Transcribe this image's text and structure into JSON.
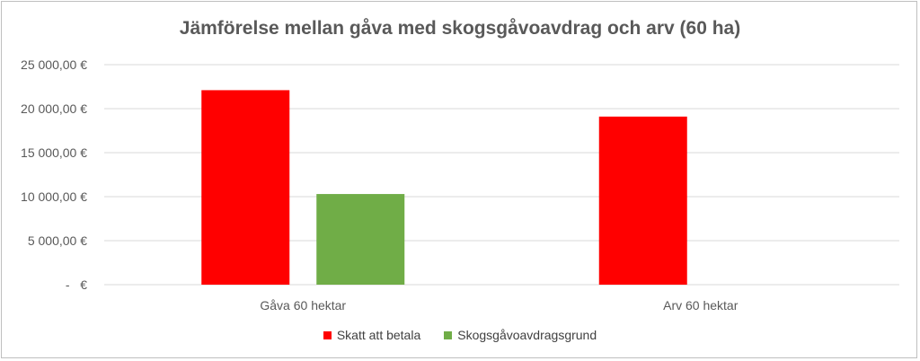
{
  "chart_data": {
    "type": "bar",
    "title": "Jämförelse mellan gåva med skogsgåvoavdrag och arv (60 ha)",
    "categories": [
      "Gåva 60 hektar",
      "Arv 60 hektar"
    ],
    "series": [
      {
        "name": "Skatt att betala",
        "color": "#ff0000",
        "values": [
          22100,
          19100
        ]
      },
      {
        "name": "Skogsgåvoavdragsgrund",
        "color": "#70ad47",
        "values": [
          10300,
          0
        ]
      }
    ],
    "ylim": [
      0,
      25000
    ],
    "yticks": [
      {
        "value": 0,
        "label": "-   €"
      },
      {
        "value": 5000,
        "label": "5 000,00 €"
      },
      {
        "value": 10000,
        "label": "10 000,00 €"
      },
      {
        "value": 15000,
        "label": "15 000,00 €"
      },
      {
        "value": 20000,
        "label": "20 000,00 €"
      },
      {
        "value": 25000,
        "label": "25 000,00 €"
      }
    ],
    "grid": true,
    "legend_position": "bottom",
    "xlabel": "",
    "ylabel": ""
  }
}
